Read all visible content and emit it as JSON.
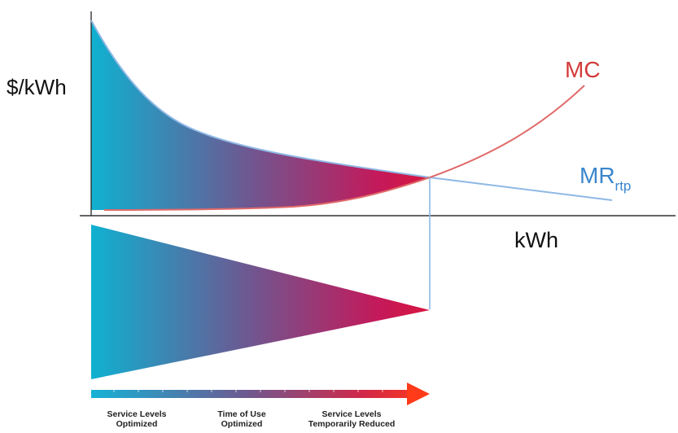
{
  "diagram": {
    "ylabel": "$/kWh",
    "xlabel": "kWh",
    "curves": {
      "mc": {
        "label": "MC",
        "color": "#d9534f"
      },
      "mr": {
        "label": "MR",
        "label_sub": "rtp",
        "color": "#8fb8e6"
      }
    },
    "gradient_colors": [
      "#0fb0d0",
      "#6b5b95",
      "#c2185b",
      "#e03030"
    ],
    "arrow_color_end": "#ff3b1a",
    "arrow_captions": [
      {
        "line1": "Service Levels",
        "line2": "Optimized"
      },
      {
        "line1": "Time of Use",
        "line2": "Optimized"
      },
      {
        "line1": "Service Levels",
        "line2": "Temporarily Reduced"
      }
    ]
  }
}
